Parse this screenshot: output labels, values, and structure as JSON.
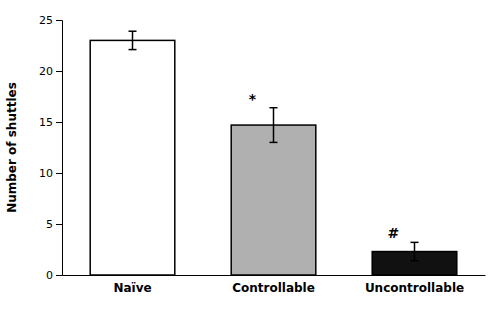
{
  "chart_data": {
    "type": "bar",
    "ylabel": "Number of shuttles",
    "categories": [
      "Naïve",
      "Controllable",
      "Uncontrollable"
    ],
    "values": [
      23.0,
      14.7,
      2.3
    ],
    "errors": [
      0.9,
      1.7,
      0.9
    ],
    "colors": [
      "#ffffff",
      "#b0b0b0",
      "#111111"
    ],
    "annotations": [
      null,
      "*",
      "#"
    ],
    "ylim": [
      0,
      25
    ],
    "yticks": [
      0,
      5,
      10,
      15,
      20,
      25
    ],
    "grid": false
  }
}
